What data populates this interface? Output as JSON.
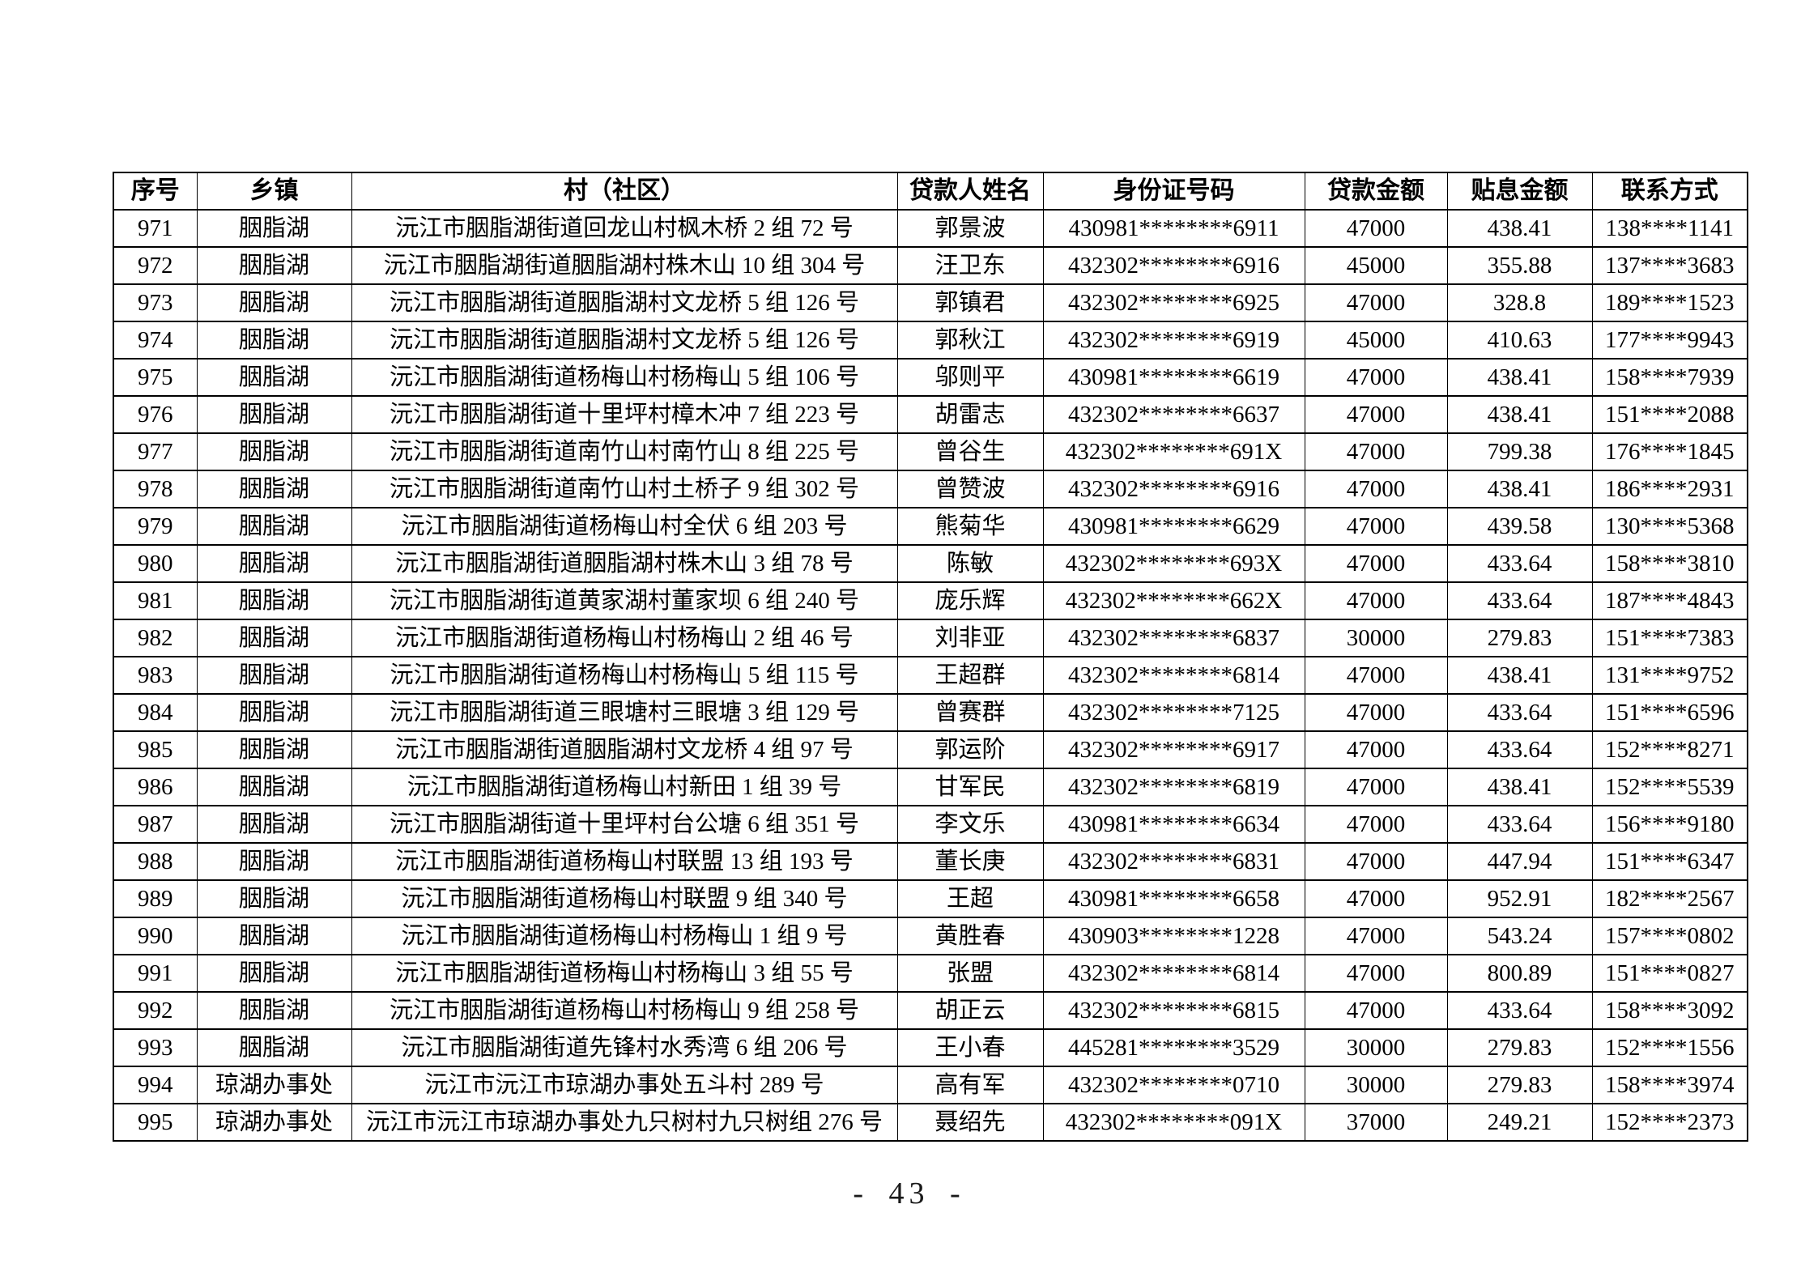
{
  "page": {
    "number_label": "- 43 -"
  },
  "table": {
    "headers": [
      "序号",
      "乡镇",
      "村（社区）",
      "贷款人姓名",
      "身份证号码",
      "贷款金额",
      "贴息金额",
      "联系方式"
    ],
    "column_keys": [
      "index",
      "township",
      "village",
      "borrower-name",
      "id-number",
      "loan-amount",
      "subsidy-amount",
      "contact-phone"
    ],
    "rows": [
      [
        "971",
        "胭脂湖",
        "沅江市胭脂湖街道回龙山村枫木桥 2 组 72 号",
        "郭景波",
        "430981********6911",
        "47000",
        "438.41",
        "138****1141"
      ],
      [
        "972",
        "胭脂湖",
        "沅江市胭脂湖街道胭脂湖村株木山 10 组 304 号",
        "汪卫东",
        "432302********6916",
        "45000",
        "355.88",
        "137****3683"
      ],
      [
        "973",
        "胭脂湖",
        "沅江市胭脂湖街道胭脂湖村文龙桥 5 组 126 号",
        "郭镇君",
        "432302********6925",
        "47000",
        "328.8",
        "189****1523"
      ],
      [
        "974",
        "胭脂湖",
        "沅江市胭脂湖街道胭脂湖村文龙桥 5 组 126 号",
        "郭秋江",
        "432302********6919",
        "45000",
        "410.63",
        "177****9943"
      ],
      [
        "975",
        "胭脂湖",
        "沅江市胭脂湖街道杨梅山村杨梅山 5 组 106 号",
        "邬则平",
        "430981********6619",
        "47000",
        "438.41",
        "158****7939"
      ],
      [
        "976",
        "胭脂湖",
        "沅江市胭脂湖街道十里坪村樟木冲 7 组 223 号",
        "胡雷志",
        "432302********6637",
        "47000",
        "438.41",
        "151****2088"
      ],
      [
        "977",
        "胭脂湖",
        "沅江市胭脂湖街道南竹山村南竹山 8 组 225 号",
        "曾谷生",
        "432302********691X",
        "47000",
        "799.38",
        "176****1845"
      ],
      [
        "978",
        "胭脂湖",
        "沅江市胭脂湖街道南竹山村土桥子 9 组 302 号",
        "曾赞波",
        "432302********6916",
        "47000",
        "438.41",
        "186****2931"
      ],
      [
        "979",
        "胭脂湖",
        "沅江市胭脂湖街道杨梅山村全伏 6 组 203 号",
        "熊菊华",
        "430981********6629",
        "47000",
        "439.58",
        "130****5368"
      ],
      [
        "980",
        "胭脂湖",
        "沅江市胭脂湖街道胭脂湖村株木山 3 组 78 号",
        "陈敏",
        "432302********693X",
        "47000",
        "433.64",
        "158****3810"
      ],
      [
        "981",
        "胭脂湖",
        "沅江市胭脂湖街道黄家湖村董家坝 6 组 240 号",
        "庞乐辉",
        "432302********662X",
        "47000",
        "433.64",
        "187****4843"
      ],
      [
        "982",
        "胭脂湖",
        "沅江市胭脂湖街道杨梅山村杨梅山 2 组 46 号",
        "刘非亚",
        "432302********6837",
        "30000",
        "279.83",
        "151****7383"
      ],
      [
        "983",
        "胭脂湖",
        "沅江市胭脂湖街道杨梅山村杨梅山 5 组 115 号",
        "王超群",
        "432302********6814",
        "47000",
        "438.41",
        "131****9752"
      ],
      [
        "984",
        "胭脂湖",
        "沅江市胭脂湖街道三眼塘村三眼塘 3 组 129 号",
        "曾赛群",
        "432302********7125",
        "47000",
        "433.64",
        "151****6596"
      ],
      [
        "985",
        "胭脂湖",
        "沅江市胭脂湖街道胭脂湖村文龙桥 4 组 97 号",
        "郭运阶",
        "432302********6917",
        "47000",
        "433.64",
        "152****8271"
      ],
      [
        "986",
        "胭脂湖",
        "沅江市胭脂湖街道杨梅山村新田 1 组 39 号",
        "甘军民",
        "432302********6819",
        "47000",
        "438.41",
        "152****5539"
      ],
      [
        "987",
        "胭脂湖",
        "沅江市胭脂湖街道十里坪村台公塘 6 组 351 号",
        "李文乐",
        "430981********6634",
        "47000",
        "433.64",
        "156****9180"
      ],
      [
        "988",
        "胭脂湖",
        "沅江市胭脂湖街道杨梅山村联盟 13 组 193 号",
        "董长庚",
        "432302********6831",
        "47000",
        "447.94",
        "151****6347"
      ],
      [
        "989",
        "胭脂湖",
        "沅江市胭脂湖街道杨梅山村联盟 9 组 340 号",
        "王超",
        "430981********6658",
        "47000",
        "952.91",
        "182****2567"
      ],
      [
        "990",
        "胭脂湖",
        "沅江市胭脂湖街道杨梅山村杨梅山 1 组 9 号",
        "黄胜春",
        "430903********1228",
        "47000",
        "543.24",
        "157****0802"
      ],
      [
        "991",
        "胭脂湖",
        "沅江市胭脂湖街道杨梅山村杨梅山 3 组 55 号",
        "张盟",
        "432302********6814",
        "47000",
        "800.89",
        "151****0827"
      ],
      [
        "992",
        "胭脂湖",
        "沅江市胭脂湖街道杨梅山村杨梅山 9 组 258 号",
        "胡正云",
        "432302********6815",
        "47000",
        "433.64",
        "158****3092"
      ],
      [
        "993",
        "胭脂湖",
        "沅江市胭脂湖街道先锋村水秀湾 6 组 206 号",
        "王小春",
        "445281********3529",
        "30000",
        "279.83",
        "152****1556"
      ],
      [
        "994",
        "琼湖办事处",
        "沅江市沅江市琼湖办事处五斗村 289 号",
        "高有军",
        "432302********0710",
        "30000",
        "279.83",
        "158****3974"
      ],
      [
        "995",
        "琼湖办事处",
        "沅江市沅江市琼湖办事处九只树村九只树组 276 号",
        "聂绍先",
        "432302********091X",
        "37000",
        "249.21",
        "152****2373"
      ]
    ]
  }
}
